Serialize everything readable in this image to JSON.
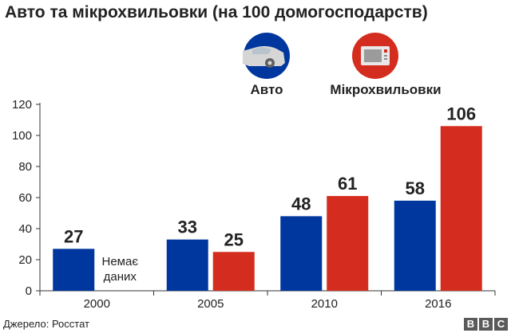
{
  "chart_data": {
    "type": "bar",
    "title": "Авто та мікрохвильовки (на 100 домогосподарств)",
    "categories": [
      "2000",
      "2005",
      "2010",
      "2016"
    ],
    "series": [
      {
        "name": "Авто",
        "color": "#00379e",
        "icon": "car-icon",
        "values": [
          27,
          33,
          48,
          58
        ]
      },
      {
        "name": "Мікрохвильовки",
        "color": "#d42d1f",
        "icon": "microwave-icon",
        "values": [
          null,
          25,
          61,
          106
        ]
      }
    ],
    "yticks": [
      0,
      20,
      40,
      60,
      80,
      100,
      120
    ],
    "ylim": [
      0,
      120
    ],
    "grid": false,
    "legend": "top-right",
    "annotations": [
      {
        "series": 1,
        "category": 0,
        "text": [
          "Немає",
          "даних"
        ]
      }
    ]
  },
  "source": "Джерело: Росстат",
  "brand": [
    "B",
    "B",
    "C"
  ]
}
